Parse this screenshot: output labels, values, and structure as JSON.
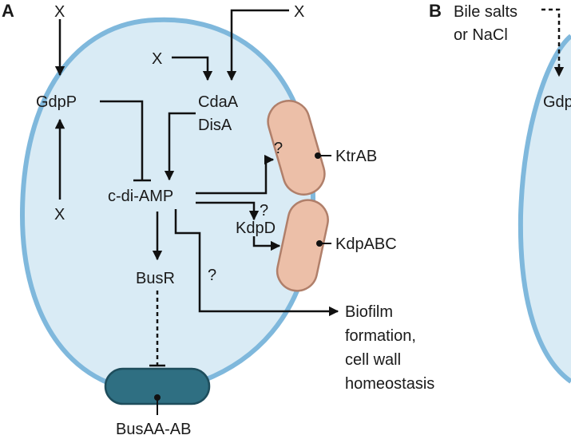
{
  "panel_a": {
    "letter": "A",
    "labels": {
      "x_top": "X",
      "x_right": "X",
      "x_mid": "X",
      "x_bottom": "X",
      "gdpp": "GdpP",
      "cdaa": "CdaA",
      "disa": "DisA",
      "cdiamp": "c-di-AMP",
      "busr": "BusR",
      "q1": "?",
      "q2": "?",
      "q3": "?",
      "kdpd": "KdpD",
      "ktrab": "KtrAB",
      "kdpabc": "KdpABC",
      "busaa": "BusAA-AB",
      "biofilm_1": "Biofilm",
      "biofilm_2": "formation,",
      "biofilm_3": "cell wall",
      "biofilm_4": "homeostasis"
    }
  },
  "panel_b": {
    "letter": "B",
    "labels": {
      "bile_1": "Bile salts",
      "bile_2": "or NaCl",
      "gdp_partial": "Gdp"
    }
  },
  "colors": {
    "cell_fill": "#d9ebf5",
    "cell_border": "#7fb8dc",
    "transporter_fill": "#ecbfa8",
    "transporter_stroke": "#b07f6a",
    "busaa_fill": "#2f6f82",
    "busaa_stroke": "#1e4d5c"
  }
}
